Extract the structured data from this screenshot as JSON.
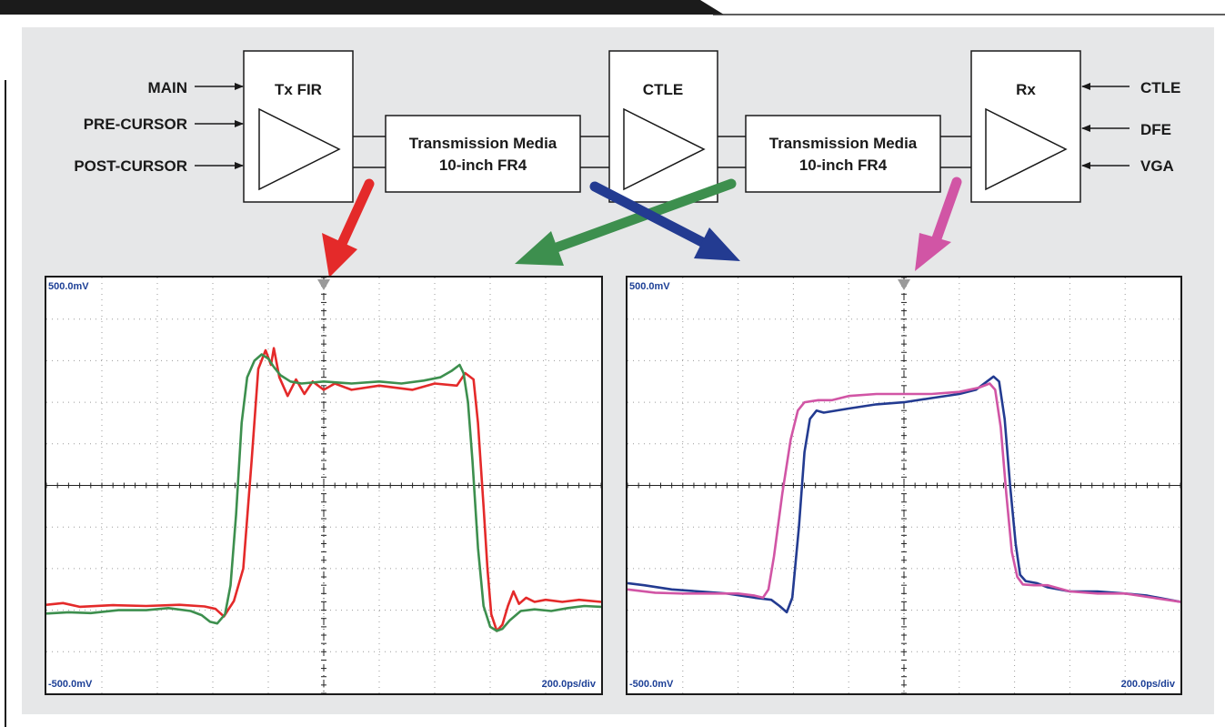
{
  "inputs_left": [
    "MAIN",
    "PRE-CURSOR",
    "POST-CURSOR"
  ],
  "inputs_right": [
    "CTLE",
    "DFE",
    "VGA"
  ],
  "blocks": {
    "tx": "Tx FIR",
    "ctle": "CTLE",
    "rx": "Rx",
    "media1_line1": "Transmission Media",
    "media1_line2": "10-inch FR4",
    "media2_line1": "Transmission Media",
    "media2_line2": "10-inch FR4"
  },
  "colors": {
    "red": "#e42a2a",
    "green": "#3d8f4e",
    "blue": "#233b91",
    "pink": "#d155a5",
    "panel": "#e6e7e8"
  },
  "scopes": [
    {
      "top_label": "500.0mV",
      "bottom_label": "-500.0mV",
      "timebase": "200.0ps/div",
      "traces": [
        {
          "color": "red",
          "points": [
            [
              0,
              2.13
            ],
            [
              0.3,
              2.17
            ],
            [
              0.6,
              2.08
            ],
            [
              1.2,
              2.12
            ],
            [
              1.8,
              2.1
            ],
            [
              2.4,
              2.13
            ],
            [
              2.85,
              2.09
            ],
            [
              3.05,
              2.03
            ],
            [
              3.2,
              1.85
            ],
            [
              3.38,
              2.22
            ],
            [
              3.55,
              3.0
            ],
            [
              3.7,
              5.6
            ],
            [
              3.82,
              7.8
            ],
            [
              3.95,
              8.25
            ],
            [
              4.05,
              7.9
            ],
            [
              4.1,
              8.3
            ],
            [
              4.2,
              7.6
            ],
            [
              4.35,
              7.15
            ],
            [
              4.5,
              7.55
            ],
            [
              4.65,
              7.2
            ],
            [
              4.8,
              7.5
            ],
            [
              5.0,
              7.3
            ],
            [
              5.2,
              7.45
            ],
            [
              5.5,
              7.3
            ],
            [
              6.0,
              7.4
            ],
            [
              6.6,
              7.3
            ],
            [
              7.0,
              7.45
            ],
            [
              7.4,
              7.4
            ],
            [
              7.55,
              7.7
            ],
            [
              7.7,
              7.55
            ],
            [
              7.78,
              6.5
            ],
            [
              7.88,
              4.5
            ],
            [
              7.95,
              3.0
            ],
            [
              8.02,
              1.9
            ],
            [
              8.12,
              1.5
            ],
            [
              8.22,
              1.65
            ],
            [
              8.32,
              2.1
            ],
            [
              8.42,
              2.45
            ],
            [
              8.52,
              2.15
            ],
            [
              8.65,
              2.3
            ],
            [
              8.8,
              2.2
            ],
            [
              9.0,
              2.25
            ],
            [
              9.3,
              2.2
            ],
            [
              9.6,
              2.25
            ],
            [
              10,
              2.2
            ]
          ]
        },
        {
          "color": "green",
          "points": [
            [
              0,
              1.92
            ],
            [
              0.4,
              1.95
            ],
            [
              0.8,
              1.93
            ],
            [
              1.3,
              2.0
            ],
            [
              1.8,
              2.0
            ],
            [
              2.2,
              2.05
            ],
            [
              2.6,
              1.98
            ],
            [
              2.8,
              1.88
            ],
            [
              2.95,
              1.72
            ],
            [
              3.08,
              1.68
            ],
            [
              3.22,
              1.9
            ],
            [
              3.32,
              2.6
            ],
            [
              3.42,
              4.3
            ],
            [
              3.52,
              6.5
            ],
            [
              3.62,
              7.6
            ],
            [
              3.75,
              8.0
            ],
            [
              3.88,
              8.15
            ],
            [
              4.0,
              8.05
            ],
            [
              4.1,
              7.85
            ],
            [
              4.22,
              7.65
            ],
            [
              4.4,
              7.5
            ],
            [
              4.6,
              7.45
            ],
            [
              5.0,
              7.5
            ],
            [
              5.5,
              7.45
            ],
            [
              6.0,
              7.5
            ],
            [
              6.4,
              7.45
            ],
            [
              6.8,
              7.52
            ],
            [
              7.1,
              7.6
            ],
            [
              7.3,
              7.75
            ],
            [
              7.45,
              7.9
            ],
            [
              7.52,
              7.7
            ],
            [
              7.6,
              7.0
            ],
            [
              7.68,
              5.6
            ],
            [
              7.78,
              3.5
            ],
            [
              7.88,
              2.1
            ],
            [
              8.0,
              1.6
            ],
            [
              8.12,
              1.5
            ],
            [
              8.22,
              1.55
            ],
            [
              8.35,
              1.75
            ],
            [
              8.55,
              1.98
            ],
            [
              8.8,
              2.02
            ],
            [
              9.1,
              1.98
            ],
            [
              9.4,
              2.05
            ],
            [
              9.7,
              2.1
            ],
            [
              10,
              2.08
            ]
          ]
        }
      ]
    },
    {
      "top_label": "500.0mV",
      "bottom_label": "-500.0mV",
      "timebase": "200.0ps/div",
      "traces": [
        {
          "color": "blue",
          "points": [
            [
              0,
              2.65
            ],
            [
              0.3,
              2.6
            ],
            [
              0.8,
              2.5
            ],
            [
              1.3,
              2.45
            ],
            [
              1.8,
              2.4
            ],
            [
              2.3,
              2.3
            ],
            [
              2.6,
              2.25
            ],
            [
              2.75,
              2.1
            ],
            [
              2.88,
              1.95
            ],
            [
              2.98,
              2.3
            ],
            [
              3.1,
              4.0
            ],
            [
              3.2,
              5.8
            ],
            [
              3.3,
              6.6
            ],
            [
              3.42,
              6.8
            ],
            [
              3.55,
              6.75
            ],
            [
              4.0,
              6.85
            ],
            [
              4.5,
              6.95
            ],
            [
              5.0,
              7.0
            ],
            [
              5.5,
              7.1
            ],
            [
              6.0,
              7.2
            ],
            [
              6.3,
              7.3
            ],
            [
              6.5,
              7.5
            ],
            [
              6.62,
              7.62
            ],
            [
              6.72,
              7.5
            ],
            [
              6.82,
              6.6
            ],
            [
              6.92,
              5.0
            ],
            [
              7.02,
              3.6
            ],
            [
              7.1,
              2.85
            ],
            [
              7.2,
              2.7
            ],
            [
              7.4,
              2.65
            ],
            [
              7.6,
              2.55
            ],
            [
              8.0,
              2.45
            ],
            [
              8.5,
              2.45
            ],
            [
              9.0,
              2.4
            ],
            [
              9.4,
              2.35
            ],
            [
              10,
              2.2
            ]
          ]
        },
        {
          "color": "pink",
          "points": [
            [
              0,
              2.5
            ],
            [
              0.5,
              2.42
            ],
            [
              1.0,
              2.4
            ],
            [
              1.5,
              2.4
            ],
            [
              2.0,
              2.4
            ],
            [
              2.3,
              2.35
            ],
            [
              2.45,
              2.3
            ],
            [
              2.55,
              2.5
            ],
            [
              2.65,
              3.3
            ],
            [
              2.8,
              4.8
            ],
            [
              2.95,
              6.1
            ],
            [
              3.08,
              6.8
            ],
            [
              3.2,
              7.0
            ],
            [
              3.45,
              7.05
            ],
            [
              3.7,
              7.05
            ],
            [
              4.0,
              7.15
            ],
            [
              4.5,
              7.2
            ],
            [
              5.0,
              7.2
            ],
            [
              5.5,
              7.2
            ],
            [
              6.0,
              7.25
            ],
            [
              6.35,
              7.35
            ],
            [
              6.55,
              7.45
            ],
            [
              6.65,
              7.3
            ],
            [
              6.75,
              6.4
            ],
            [
              6.85,
              4.8
            ],
            [
              6.95,
              3.4
            ],
            [
              7.05,
              2.8
            ],
            [
              7.15,
              2.62
            ],
            [
              7.35,
              2.6
            ],
            [
              7.6,
              2.6
            ],
            [
              8.0,
              2.45
            ],
            [
              8.5,
              2.4
            ],
            [
              9.0,
              2.4
            ],
            [
              9.5,
              2.3
            ],
            [
              10,
              2.2
            ]
          ]
        }
      ]
    }
  ]
}
